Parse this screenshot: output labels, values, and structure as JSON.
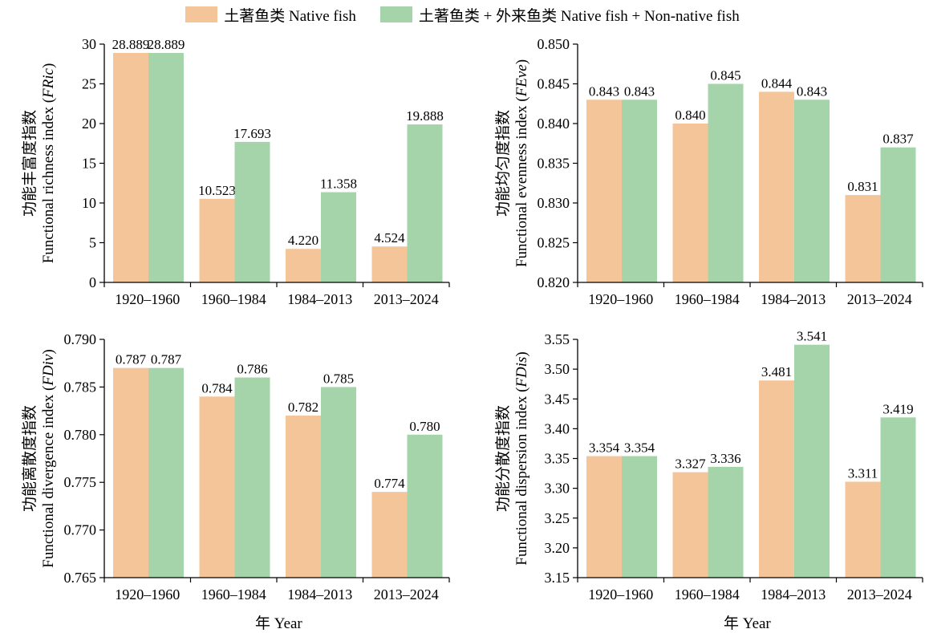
{
  "legend": {
    "native": "土著鱼类 Native fish",
    "combined": "土著鱼类 + 外来鱼类 Native fish + Non-native fish"
  },
  "colors": {
    "native": "#f5c59a",
    "combined": "#a5d4aa"
  },
  "x_title": "年 Year",
  "chart_data": [
    {
      "type": "bar",
      "categories": [
        "1920–1960",
        "1960–1984",
        "1984–2013",
        "2013–2024"
      ],
      "series": [
        {
          "name": "土著鱼类 Native fish",
          "values": [
            28.889,
            10.523,
            4.22,
            4.524
          ],
          "labels": [
            "28.889",
            "10.523",
            "4.220",
            "4.524"
          ]
        },
        {
          "name": "土著鱼类 + 外来鱼类 Native fish + Non-native fish",
          "values": [
            28.889,
            17.693,
            11.358,
            19.888
          ],
          "labels": [
            "28.889",
            "17.693",
            "11.358",
            "19.888"
          ]
        }
      ],
      "ylabel_cn": "功能丰富度指数",
      "ylabel_en": "Functional richness index (",
      "ylabel_abbr": "FRic",
      "ylim": [
        0,
        30
      ],
      "yticks": [
        "0",
        "5",
        "10",
        "15",
        "20",
        "25",
        "30"
      ]
    },
    {
      "type": "bar",
      "categories": [
        "1920–1960",
        "1960–1984",
        "1984–2013",
        "2013–2024"
      ],
      "series": [
        {
          "name": "土著鱼类 Native fish",
          "values": [
            0.843,
            0.84,
            0.844,
            0.831
          ],
          "labels": [
            "0.843",
            "0.840",
            "0.844",
            "0.831"
          ]
        },
        {
          "name": "土著鱼类 + 外来鱼类 Native fish + Non-native fish",
          "values": [
            0.843,
            0.845,
            0.843,
            0.837
          ],
          "labels": [
            "0.843",
            "0.845",
            "0.843",
            "0.837"
          ]
        }
      ],
      "ylabel_cn": "功能均匀度指数",
      "ylabel_en": "Functional evenness index (",
      "ylabel_abbr": "FEve",
      "ylim": [
        0.82,
        0.85
      ],
      "yticks": [
        "0.820",
        "0.825",
        "0.830",
        "0.835",
        "0.840",
        "0.845",
        "0.850"
      ]
    },
    {
      "type": "bar",
      "categories": [
        "1920–1960",
        "1960–1984",
        "1984–2013",
        "2013–2024"
      ],
      "series": [
        {
          "name": "土著鱼类 Native fish",
          "values": [
            0.787,
            0.784,
            0.782,
            0.774
          ],
          "labels": [
            "0.787",
            "0.784",
            "0.782",
            "0.774"
          ]
        },
        {
          "name": "土著鱼类 + 外来鱼类 Native fish + Non-native fish",
          "values": [
            0.787,
            0.786,
            0.785,
            0.78
          ],
          "labels": [
            "0.787",
            "0.786",
            "0.785",
            "0.780"
          ]
        }
      ],
      "ylabel_cn": "功能离散度指数",
      "ylabel_en": "Functional divergence index (",
      "ylabel_abbr": "FDiv",
      "ylim": [
        0.765,
        0.79
      ],
      "yticks": [
        "0.765",
        "0.770",
        "0.775",
        "0.780",
        "0.785",
        "0.790"
      ]
    },
    {
      "type": "bar",
      "categories": [
        "1920–1960",
        "1960–1984",
        "1984–2013",
        "2013–2024"
      ],
      "series": [
        {
          "name": "土著鱼类 Native fish",
          "values": [
            3.354,
            3.327,
            3.481,
            3.311
          ],
          "labels": [
            "3.354",
            "3.327",
            "3.481",
            "3.311"
          ]
        },
        {
          "name": "土著鱼类 + 外来鱼类 Native fish + Non-native fish",
          "values": [
            3.354,
            3.336,
            3.541,
            3.419
          ],
          "labels": [
            "3.354",
            "3.336",
            "3.541",
            "3.419"
          ]
        }
      ],
      "ylabel_cn": "功能分散度指数",
      "ylabel_en": "Functional dispersion index (",
      "ylabel_abbr": "FDis",
      "ylim": [
        3.15,
        3.55
      ],
      "yticks": [
        "3.15",
        "3.20",
        "3.25",
        "3.30",
        "3.35",
        "3.40",
        "3.45",
        "3.50",
        "3.55"
      ]
    }
  ]
}
